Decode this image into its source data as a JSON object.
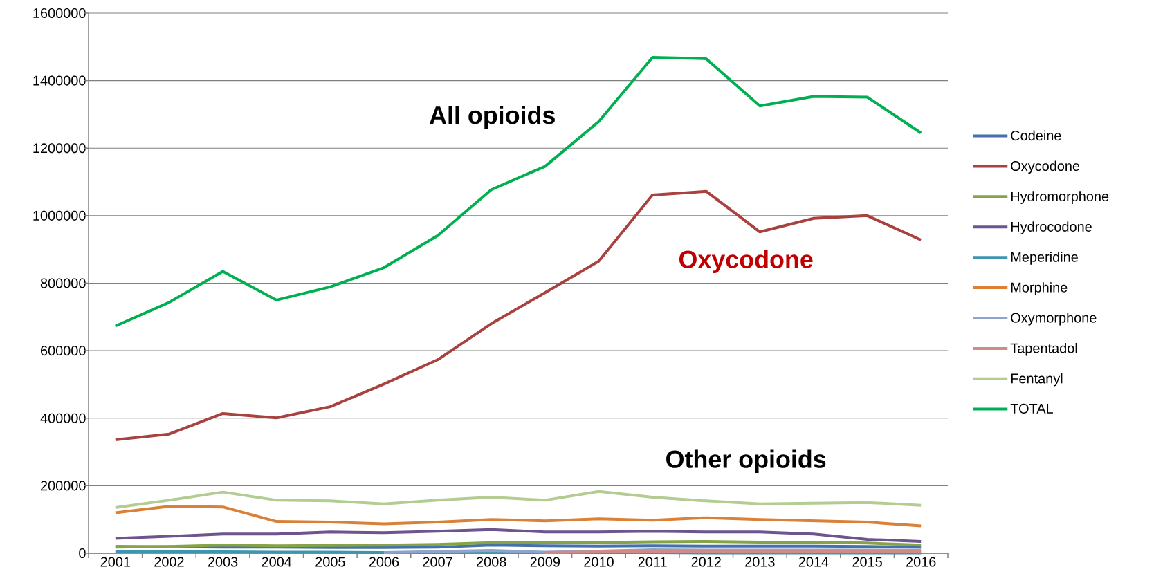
{
  "chart_data": {
    "type": "line",
    "categories": [
      "2001",
      "2002",
      "2003",
      "2004",
      "2005",
      "2006",
      "2007",
      "2008",
      "2009",
      "2010",
      "2011",
      "2012",
      "2013",
      "2014",
      "2015",
      "2016"
    ],
    "series": [
      {
        "name": "Codeine",
        "color": "#4472a8",
        "values": [
          20000,
          19000,
          18000,
          18000,
          17000,
          17000,
          18000,
          24000,
          22000,
          21000,
          22000,
          21000,
          21000,
          21000,
          20000,
          18000
        ]
      },
      {
        "name": "Oxycodone",
        "color": "#a8423f",
        "values": [
          336000,
          353000,
          414000,
          401000,
          434000,
          501000,
          573000,
          680000,
          772000,
          865000,
          1061000,
          1072000,
          952000,
          992000,
          1000000,
          928000
        ]
      },
      {
        "name": "Hydromorphone",
        "color": "#86a447",
        "values": [
          18000,
          20000,
          24000,
          22000,
          23000,
          24000,
          26000,
          31000,
          31000,
          32000,
          34000,
          35000,
          33000,
          33000,
          30000,
          24000
        ]
      },
      {
        "name": "Hydrocodone",
        "color": "#6e548d",
        "values": [
          44000,
          50000,
          57000,
          57000,
          63000,
          61000,
          65000,
          70000,
          63000,
          63000,
          65000,
          63000,
          63000,
          57000,
          41000,
          35000
        ]
      },
      {
        "name": "Meperidine",
        "color": "#3d96ae",
        "values": [
          5000,
          4000,
          4000,
          3000,
          3000,
          2000,
          2000,
          2000,
          2000,
          2000,
          2000,
          1000,
          1000,
          1000,
          1000,
          1000
        ]
      },
      {
        "name": "Morphine",
        "color": "#da8137",
        "values": [
          120000,
          139000,
          137000,
          94000,
          92000,
          87000,
          92000,
          100000,
          96000,
          102000,
          98000,
          105000,
          100000,
          96000,
          92000,
          81000
        ]
      },
      {
        "name": "Oxymorphone",
        "color": "#8ea5cb",
        "values": [
          null,
          null,
          null,
          null,
          null,
          2000,
          5000,
          8000,
          3000,
          6000,
          10000,
          9000,
          9000,
          9000,
          9000,
          9000
        ]
      },
      {
        "name": "Tapentadol",
        "color": "#cf8b89",
        "values": [
          null,
          null,
          null,
          null,
          null,
          null,
          null,
          null,
          2000,
          4000,
          5000,
          5000,
          5000,
          5000,
          5000,
          5000
        ]
      },
      {
        "name": "Fentanyl",
        "color": "#b3cc92",
        "values": [
          135000,
          157000,
          181000,
          157000,
          155000,
          146000,
          157000,
          166000,
          157000,
          183000,
          166000,
          155000,
          146000,
          148000,
          150000,
          142000
        ]
      },
      {
        "name": "TOTAL",
        "color": "#00b050",
        "values": [
          673000,
          743000,
          835000,
          750000,
          789000,
          846000,
          941000,
          1077000,
          1146000,
          1279000,
          1469000,
          1465000,
          1325000,
          1353000,
          1351000,
          1245000
        ]
      }
    ],
    "ylim": [
      0,
      1600000
    ],
    "yticks": [
      0,
      200000,
      400000,
      600000,
      800000,
      1000000,
      1200000,
      1400000,
      1600000
    ],
    "grid": "y",
    "legend": "right",
    "marker": "none",
    "line_style": "solid",
    "annotations": [
      "All opioids",
      "Oxycodone",
      "Other opioids"
    ]
  }
}
